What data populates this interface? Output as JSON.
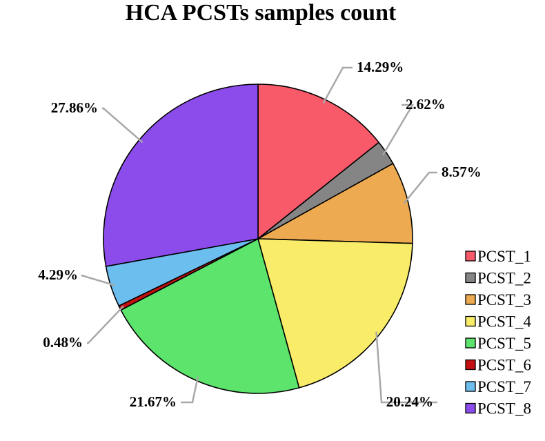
{
  "chart_data": {
    "type": "pie",
    "title": "HCA PCSTs samples count",
    "categories": [
      "PCST_1",
      "PCST_2",
      "PCST_3",
      "PCST_4",
      "PCST_5",
      "PCST_6",
      "PCST_7",
      "PCST_8"
    ],
    "values": [
      14.29,
      2.62,
      8.57,
      20.24,
      21.67,
      0.48,
      4.29,
      27.86
    ],
    "labels": [
      "14.29%",
      "2.62%",
      "8.57%",
      "20.24%",
      "21.67%",
      "0.48%",
      "4.29%",
      "27.86%"
    ],
    "colors": [
      "#f95a6a",
      "#858585",
      "#eeaa50",
      "#f8ec68",
      "#5ce46c",
      "#c41010",
      "#6cbeef",
      "#8c4cec"
    ],
    "legend_position": "right"
  }
}
